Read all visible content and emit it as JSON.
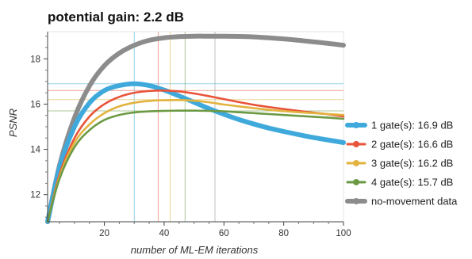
{
  "chart_data": {
    "type": "line",
    "title": "potential gain: 2.2 dB",
    "xlabel": "number of ML-EM iterations",
    "ylabel": "PSNR",
    "xlim": [
      1,
      100
    ],
    "ylim": [
      10.8,
      19.2
    ],
    "xticks": [
      20,
      40,
      60,
      80,
      100
    ],
    "yticks": [
      12,
      14,
      16,
      18
    ],
    "grid": false,
    "legend_position": "right",
    "x": [
      1,
      5,
      10,
      15,
      20,
      25,
      30,
      35,
      40,
      45,
      50,
      55,
      60,
      65,
      70,
      75,
      80,
      85,
      90,
      95,
      100
    ],
    "series": [
      {
        "name": "1 gate(s): 16.9 dB",
        "color": "#3fa9dc",
        "peak": {
          "x": 30,
          "y": 16.9
        },
        "values": [
          10.8,
          13.2,
          15.0,
          16.05,
          16.6,
          16.82,
          16.9,
          16.82,
          16.62,
          16.36,
          16.08,
          15.8,
          15.55,
          15.32,
          15.12,
          14.94,
          14.79,
          14.65,
          14.52,
          14.41,
          14.3
        ]
      },
      {
        "name": "2 gate(s): 16.6 dB",
        "color": "#e8543a",
        "peak": {
          "x": 38,
          "y": 16.6
        },
        "values": [
          10.8,
          12.9,
          14.5,
          15.45,
          16.0,
          16.32,
          16.5,
          16.58,
          16.6,
          16.56,
          16.47,
          16.35,
          16.22,
          16.09,
          15.97,
          15.87,
          15.78,
          15.7,
          15.62,
          15.55,
          15.45
        ]
      },
      {
        "name": "3 gate(s): 16.2 dB",
        "color": "#e2b33e",
        "peak": {
          "x": 42,
          "y": 16.2
        },
        "values": [
          10.8,
          12.8,
          14.3,
          15.1,
          15.6,
          15.9,
          16.06,
          16.14,
          16.17,
          16.18,
          16.15,
          16.08,
          15.98,
          15.9,
          15.82,
          15.75,
          15.69,
          15.64,
          15.6,
          15.56,
          15.52
        ]
      },
      {
        "name": "4 gate(s): 15.7 dB",
        "color": "#6c9a44",
        "peak": {
          "x": 47,
          "y": 15.7
        },
        "values": [
          10.8,
          12.7,
          14.1,
          14.85,
          15.3,
          15.52,
          15.63,
          15.68,
          15.7,
          15.71,
          15.71,
          15.7,
          15.68,
          15.64,
          15.6,
          15.56,
          15.52,
          15.48,
          15.44,
          15.4,
          15.35
        ]
      },
      {
        "name": "no-movement data",
        "color": "#8c8c8c",
        "peak": {
          "x": 57,
          "y": 19.0
        },
        "values": [
          10.8,
          13.3,
          15.4,
          16.8,
          17.7,
          18.25,
          18.6,
          18.82,
          18.93,
          18.98,
          19.0,
          19.0,
          19.0,
          18.99,
          18.97,
          18.93,
          18.88,
          18.82,
          18.75,
          18.68,
          18.6
        ]
      }
    ]
  }
}
